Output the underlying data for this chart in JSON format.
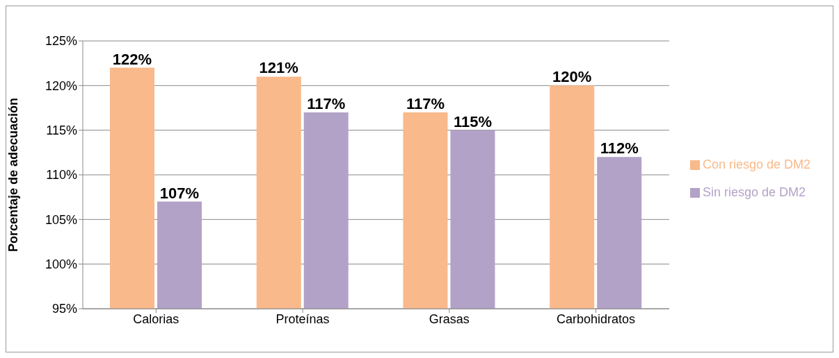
{
  "chart_data": {
    "type": "bar",
    "ylabel": "Porcentaje de adecuación",
    "categories": [
      "Calorias",
      "Proteínas",
      "Grasas",
      "Carbohidratos"
    ],
    "series": [
      {
        "name": "Con riesgo de DM2",
        "color": "#f9b98a",
        "values": [
          122,
          121,
          117,
          120
        ],
        "value_labels": [
          "122%",
          "121%",
          "117%",
          "120%"
        ]
      },
      {
        "name": "Sin riesgo de DM2",
        "color": "#b3a2c7",
        "values": [
          107,
          117,
          115,
          112
        ],
        "value_labels": [
          "107%",
          "117%",
          "115%",
          "112%"
        ]
      }
    ],
    "ylim": [
      95,
      125
    ],
    "yticks": [
      {
        "value": 95,
        "label": "95%"
      },
      {
        "value": 100,
        "label": "100%"
      },
      {
        "value": 105,
        "label": "105%"
      },
      {
        "value": 110,
        "label": "110%"
      },
      {
        "value": 115,
        "label": "115%"
      },
      {
        "value": 120,
        "label": "120%"
      },
      {
        "value": 125,
        "label": "125%"
      }
    ],
    "grid": "y",
    "legend": "right"
  }
}
